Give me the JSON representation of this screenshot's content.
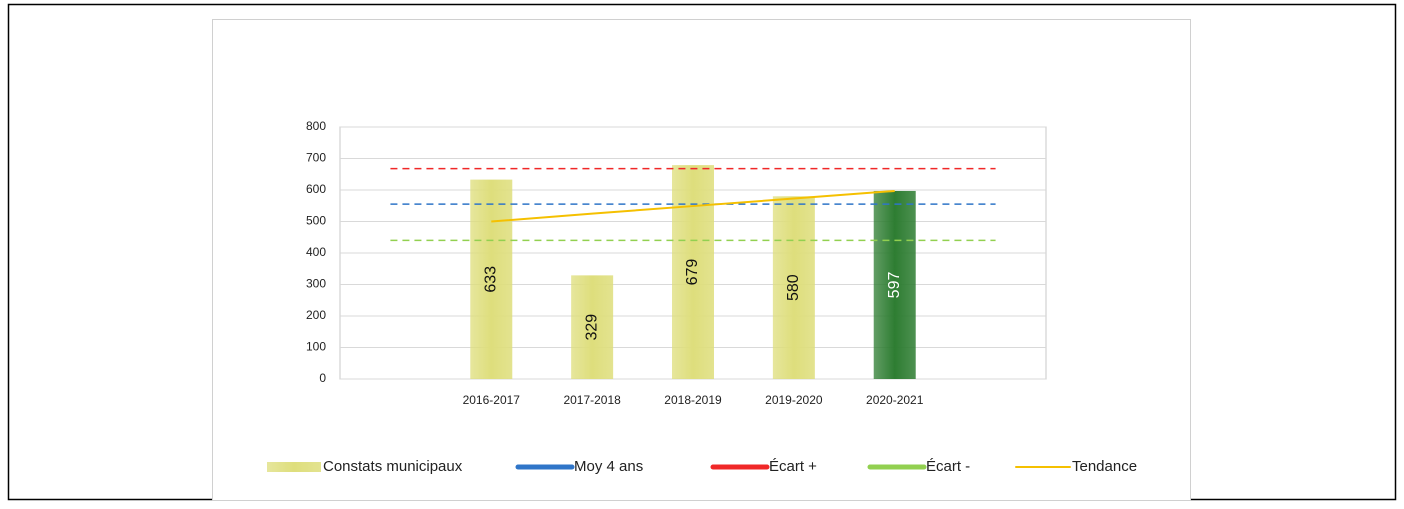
{
  "chart_data": {
    "type": "bar",
    "categories": [
      null,
      "2016-2017",
      "2017-2018",
      "2018-2019",
      "2019-2020",
      "2020-2021",
      null
    ],
    "series": [
      {
        "name": "Constats municipaux",
        "type": "bar",
        "color": "#dede7c",
        "point_colors": [
          null,
          "#dede7c",
          "#dede7c",
          "#dede7c",
          "#dede7c",
          "#2e7d32",
          null
        ],
        "values": [
          null,
          633,
          329,
          679,
          580,
          597,
          null
        ]
      },
      {
        "name": "Moy 4 ans",
        "type": "line",
        "dashed": true,
        "color": "#2f75c8",
        "values": [
          555,
          555,
          555,
          555,
          555,
          555,
          555
        ]
      },
      {
        "name": "Écart +",
        "type": "line",
        "dashed": true,
        "color": "#f02828",
        "values": [
          668,
          668,
          668,
          668,
          668,
          668,
          668
        ]
      },
      {
        "name": "Écart -",
        "type": "line",
        "dashed": true,
        "color": "#92d050",
        "values": [
          440,
          440,
          440,
          440,
          440,
          440,
          440
        ]
      },
      {
        "name": "Tendance",
        "type": "line",
        "dashed": false,
        "color": "#f5c000",
        "values": [
          null,
          500,
          525,
          549,
          573,
          597,
          null
        ]
      }
    ],
    "ylim": [
      0,
      800
    ],
    "yticks": [
      0,
      100,
      200,
      300,
      400,
      500,
      600,
      700,
      800
    ],
    "grid": true,
    "legend": "bottom"
  }
}
